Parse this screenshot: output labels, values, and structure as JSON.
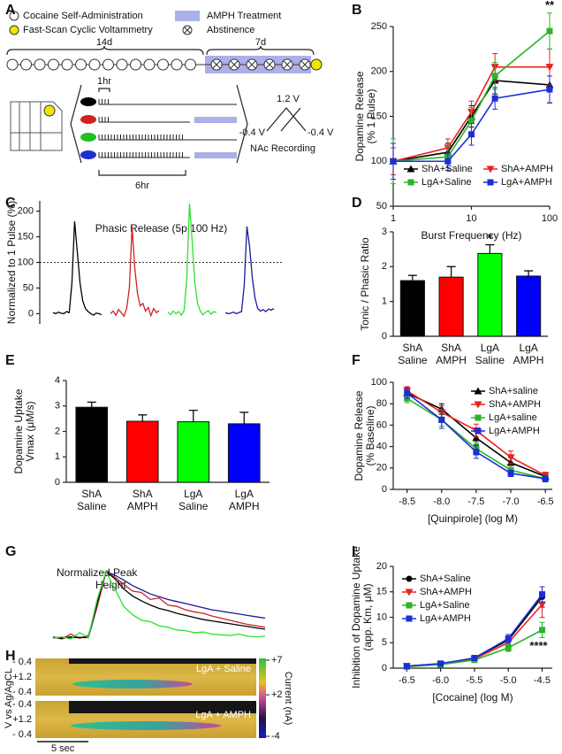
{
  "panel_labels": [
    "A",
    "B",
    "C",
    "D",
    "E",
    "F",
    "G",
    "H",
    "I"
  ],
  "diagram": {
    "legend": [
      "Cocaine Self-Administration",
      "Fast-Scan Cyclic Voltammetry",
      "AMPH Treatment",
      "Abstinence"
    ],
    "durations": [
      "14d",
      "7d"
    ],
    "session_labels": [
      "1hr",
      "6hr"
    ],
    "waveform": [
      "1.2 V",
      "-0.4 V",
      "-0.4 V",
      "NAc Recording"
    ]
  },
  "colorplot": {
    "ylabel": "V vs Ag/AgCL",
    "yticks": [
      "- 0.4",
      "+1.2",
      "- 0.4"
    ],
    "panels": [
      "LgA + Saline",
      "LgA + AMPH"
    ],
    "colorbar": {
      "label": "Current (nA)",
      "ticks": [
        {
          "value": 7,
          "label": "+7"
        },
        {
          "value": 2,
          "label": "+2"
        },
        -4
      ]
    },
    "scale_bar": "5 sec"
  },
  "chart_data": [
    {
      "type": "line",
      "xlabel": "Burst Frequency (Hz)",
      "ylabel": [
        "Dopamine Release",
        "(% 1 Pulse)"
      ],
      "x": [
        1,
        5,
        10,
        20,
        100
      ],
      "xlog": true,
      "xlim": [
        1,
        100
      ],
      "xticks": [
        1,
        10,
        100
      ],
      "ylim": [
        50,
        250
      ],
      "yticks": [
        50,
        100,
        150,
        200,
        250
      ],
      "legend": "lower center",
      "series": [
        {
          "name": "ShA+Saline",
          "color": "#000000",
          "marker": "triangle",
          "values": [
            100,
            110,
            150,
            190,
            185
          ],
          "errors": [
            20,
            10,
            12,
            15,
            20
          ]
        },
        {
          "name": "ShA+AMPH",
          "color": "#e8231f",
          "marker": "triangle-down",
          "values": [
            100,
            115,
            155,
            205,
            205
          ],
          "errors": [
            15,
            10,
            12,
            15,
            20
          ]
        },
        {
          "name": "LgA+Saline",
          "color": "#2ab52a",
          "marker": "square",
          "values": [
            100,
            105,
            145,
            195,
            245
          ],
          "errors": [
            25,
            12,
            15,
            15,
            20
          ]
        },
        {
          "name": "LgA+AMPH",
          "color": "#1c2fd6",
          "marker": "square",
          "values": [
            100,
            100,
            130,
            170,
            180
          ],
          "errors": [
            20,
            10,
            12,
            12,
            15
          ]
        }
      ],
      "significance": [
        null,
        null,
        null,
        null,
        "**"
      ]
    },
    {
      "type": "trace",
      "title": "Phasic Release (5p 100 Hz)",
      "ylabel": "Normalized to 1 Pulse (%)",
      "ylim": [
        -20,
        220
      ],
      "yticks": [
        0,
        50,
        100,
        150,
        200
      ],
      "reference": 100,
      "arrangement": "side-by-side",
      "series": [
        {
          "color": "#000000",
          "values": [
            2,
            0,
            3,
            1,
            0,
            4,
            2,
            60,
            180,
            120,
            60,
            25,
            10,
            4,
            0,
            -3,
            1,
            0,
            -2
          ]
        },
        {
          "color": "#cc2222",
          "values": [
            0,
            5,
            -3,
            8,
            2,
            -5,
            10,
            50,
            170,
            90,
            40,
            15,
            20,
            5,
            12,
            -4,
            10,
            2,
            6
          ]
        },
        {
          "color": "#2ee02e",
          "values": [
            3,
            -2,
            5,
            0,
            4,
            -3,
            6,
            70,
            215,
            140,
            60,
            20,
            5,
            -2,
            3,
            6,
            -1,
            4,
            2
          ]
        },
        {
          "color": "#1a1a99",
          "values": [
            2,
            0,
            1,
            3,
            0,
            2,
            4,
            55,
            170,
            130,
            70,
            30,
            10,
            5,
            8,
            4,
            9,
            7,
            10
          ]
        }
      ]
    },
    {
      "type": "bar",
      "ylabel": [
        "Tonic / Phasic Ratio"
      ],
      "categories": [
        [
          "ShA",
          "Saline"
        ],
        [
          "ShA",
          "AMPH"
        ],
        [
          "LgA",
          "Saline"
        ],
        [
          "LgA",
          "AMPH"
        ]
      ],
      "values": [
        1.6,
        1.7,
        2.38,
        1.73
      ],
      "errors": [
        0.15,
        0.3,
        0.25,
        0.15
      ],
      "colors": [
        "#000000",
        "#ff0000",
        "#00ff00",
        "#0000ff"
      ],
      "ylim": [
        0,
        3
      ],
      "yticks": [
        0,
        1,
        2,
        3
      ],
      "significance": [
        null,
        null,
        "*",
        null
      ]
    },
    {
      "type": "bar",
      "ylabel": [
        "Dopamine Uptake",
        "Vmax (μM/s)"
      ],
      "categories": [
        [
          "ShA",
          "Saline"
        ],
        [
          "ShA",
          "AMPH"
        ],
        [
          "LgA",
          "Saline"
        ],
        [
          "LgA",
          "AMPH"
        ]
      ],
      "values": [
        2.95,
        2.4,
        2.38,
        2.3
      ],
      "errors": [
        0.2,
        0.25,
        0.45,
        0.45
      ],
      "colors": [
        "#000000",
        "#ff0000",
        "#00ff00",
        "#0000ff"
      ],
      "ylim": [
        0,
        4
      ],
      "yticks": [
        0,
        1,
        2,
        3,
        4
      ]
    },
    {
      "type": "line",
      "xlabel": "[Quinpirole] (log M)",
      "ylabel": [
        "Dopamine Release",
        "(% Baseline)"
      ],
      "x": [
        -8.5,
        -8,
        -7.5,
        -7,
        -6.5
      ],
      "xlim": [
        -8.7,
        -6.4
      ],
      "xticks": [
        -8.5,
        {
          "value": -8,
          "label": "-8.0"
        },
        -7.5,
        {
          "value": -7,
          "label": "-7.0"
        },
        -6.5
      ],
      "ylim": [
        0,
        100
      ],
      "yticks": [
        0,
        20,
        40,
        60,
        80,
        100
      ],
      "legend": "upper right",
      "series": [
        {
          "name": "ShA+saline",
          "color": "#000000",
          "marker": "triangle",
          "values": [
            90,
            75,
            48,
            25,
            12
          ],
          "errors": [
            4,
            5,
            6,
            5,
            3
          ]
        },
        {
          "name": "ShA+AMPH",
          "color": "#e8231f",
          "marker": "triangle-down",
          "values": [
            92,
            72,
            55,
            30,
            13
          ],
          "errors": [
            4,
            6,
            6,
            6,
            3
          ]
        },
        {
          "name": "LgA+saline",
          "color": "#2ab52a",
          "marker": "square",
          "values": [
            85,
            65,
            38,
            18,
            10
          ],
          "errors": [
            4,
            6,
            6,
            4,
            3
          ]
        },
        {
          "name": "LgA+AMPH",
          "color": "#1c2fd6",
          "marker": "square",
          "values": [
            90,
            65,
            35,
            15,
            10
          ],
          "errors": [
            5,
            8,
            6,
            3,
            3
          ]
        }
      ]
    },
    {
      "type": "trace",
      "ylabel": [
        "Normalized Peak",
        "Height"
      ],
      "arrangement": "overlay",
      "series": [
        {
          "color": "#1a1a99",
          "values": [
            0.05,
            0.05,
            0.05,
            0.05,
            0.05,
            0.5,
            1,
            0.95,
            0.88,
            0.8,
            0.74,
            0.68,
            0.64,
            0.6,
            0.57,
            0.54,
            0.51,
            0.48,
            0.45,
            0.43,
            0.41,
            0.39,
            0.37,
            0.35,
            0.33
          ]
        },
        {
          "color": "#cc2222",
          "values": [
            0.06,
            0.03,
            0.1,
            0.04,
            0.08,
            0.5,
            1,
            0.92,
            0.82,
            0.72,
            0.7,
            0.6,
            0.62,
            0.52,
            0.5,
            0.45,
            0.42,
            0.4,
            0.36,
            0.33,
            0.3,
            0.27,
            0.24,
            0.22,
            0.2
          ]
        },
        {
          "color": "#000000",
          "values": [
            0.05,
            0.04,
            0.06,
            0.05,
            0.06,
            0.55,
            1,
            0.9,
            0.75,
            0.65,
            0.58,
            0.52,
            0.47,
            0.44,
            0.4,
            0.37,
            0.34,
            0.31,
            0.29,
            0.27,
            0.25,
            0.23,
            0.21,
            0.19,
            0.17
          ]
        },
        {
          "color": "#2ee02e",
          "values": [
            0.04,
            0.06,
            0.03,
            0.12,
            0.05,
            0.6,
            1,
            0.75,
            0.5,
            0.38,
            0.3,
            0.28,
            0.22,
            0.2,
            0.16,
            0.15,
            0.12,
            0.13,
            0.1,
            0.09,
            0.08,
            0.1,
            0.07,
            0.06,
            0.07
          ]
        }
      ]
    },
    {
      "type": "line",
      "xlabel": "[Cocaine] (log M)",
      "ylabel": [
        "Inhibition of Dopamine Uptake",
        "(app. Km, μM)"
      ],
      "x": [
        -6.5,
        -6,
        -5.5,
        -5,
        -4.5
      ],
      "xlim": [
        -6.7,
        -4.35
      ],
      "xticks": [
        -6.5,
        {
          "value": -6,
          "label": "-6.0"
        },
        -5.5,
        {
          "value": -5,
          "label": "-5.0"
        },
        -4.5
      ],
      "ylim": [
        0,
        20
      ],
      "yticks": [
        0,
        5,
        10,
        15,
        20
      ],
      "legend": "upper left",
      "significance_side": "below",
      "series": [
        {
          "name": "ShA+Saline",
          "color": "#000000",
          "marker": "circle",
          "values": [
            0.4,
            0.8,
            2,
            5.5,
            14
          ],
          "errors": [
            0.2,
            0.2,
            0.4,
            0.8,
            2
          ]
        },
        {
          "name": "ShA+AMPH",
          "color": "#e8231f",
          "marker": "triangle-down",
          "values": [
            0.4,
            0.8,
            1.8,
            5,
            12.5
          ],
          "errors": [
            0.2,
            0.2,
            0.4,
            0.8,
            2.5
          ]
        },
        {
          "name": "LgA+Saline",
          "color": "#2ab52a",
          "marker": "square",
          "values": [
            0.3,
            0.7,
            1.6,
            4,
            7.5
          ],
          "errors": [
            0.2,
            0.2,
            0.3,
            0.7,
            1.5
          ]
        },
        {
          "name": "LgA+AMPH",
          "color": "#1c2fd6",
          "marker": "square",
          "values": [
            0.4,
            0.9,
            2,
            5.8,
            14.5
          ],
          "errors": [
            0.2,
            0.2,
            0.4,
            0.8,
            1.5
          ]
        }
      ],
      "significance": [
        null,
        null,
        null,
        null,
        "****"
      ]
    }
  ]
}
